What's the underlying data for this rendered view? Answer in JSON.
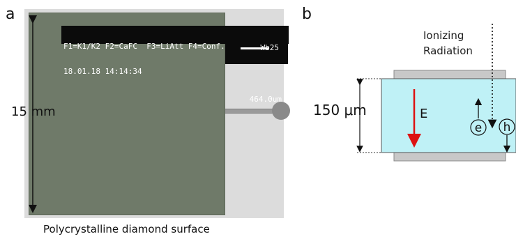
{
  "panel_a": {
    "label": "a",
    "osd_line1": "F1=K1/K2 F2=CaFC  F3=LiAtt F4=Conf.",
    "osd_line2": "18.01.18 14:14:34",
    "scale_label_top": "Wb25",
    "scale_label_bottom": "464.0um",
    "dimension": "15 mm",
    "caption": "Polycrystalline diamond surface",
    "colors": {
      "diamond": "#6f7a69",
      "frame": "#dcdcdc"
    }
  },
  "panel_b": {
    "label": "b",
    "radiation_line1": "Ionizing",
    "radiation_line2": "Radiation",
    "dimension": "150 μm",
    "field": "E",
    "electron": "e",
    "hole": "h",
    "colors": {
      "detector": "#bff1f6",
      "electrode": "#c8c8c8",
      "field_arrow": "#dd1111"
    }
  }
}
